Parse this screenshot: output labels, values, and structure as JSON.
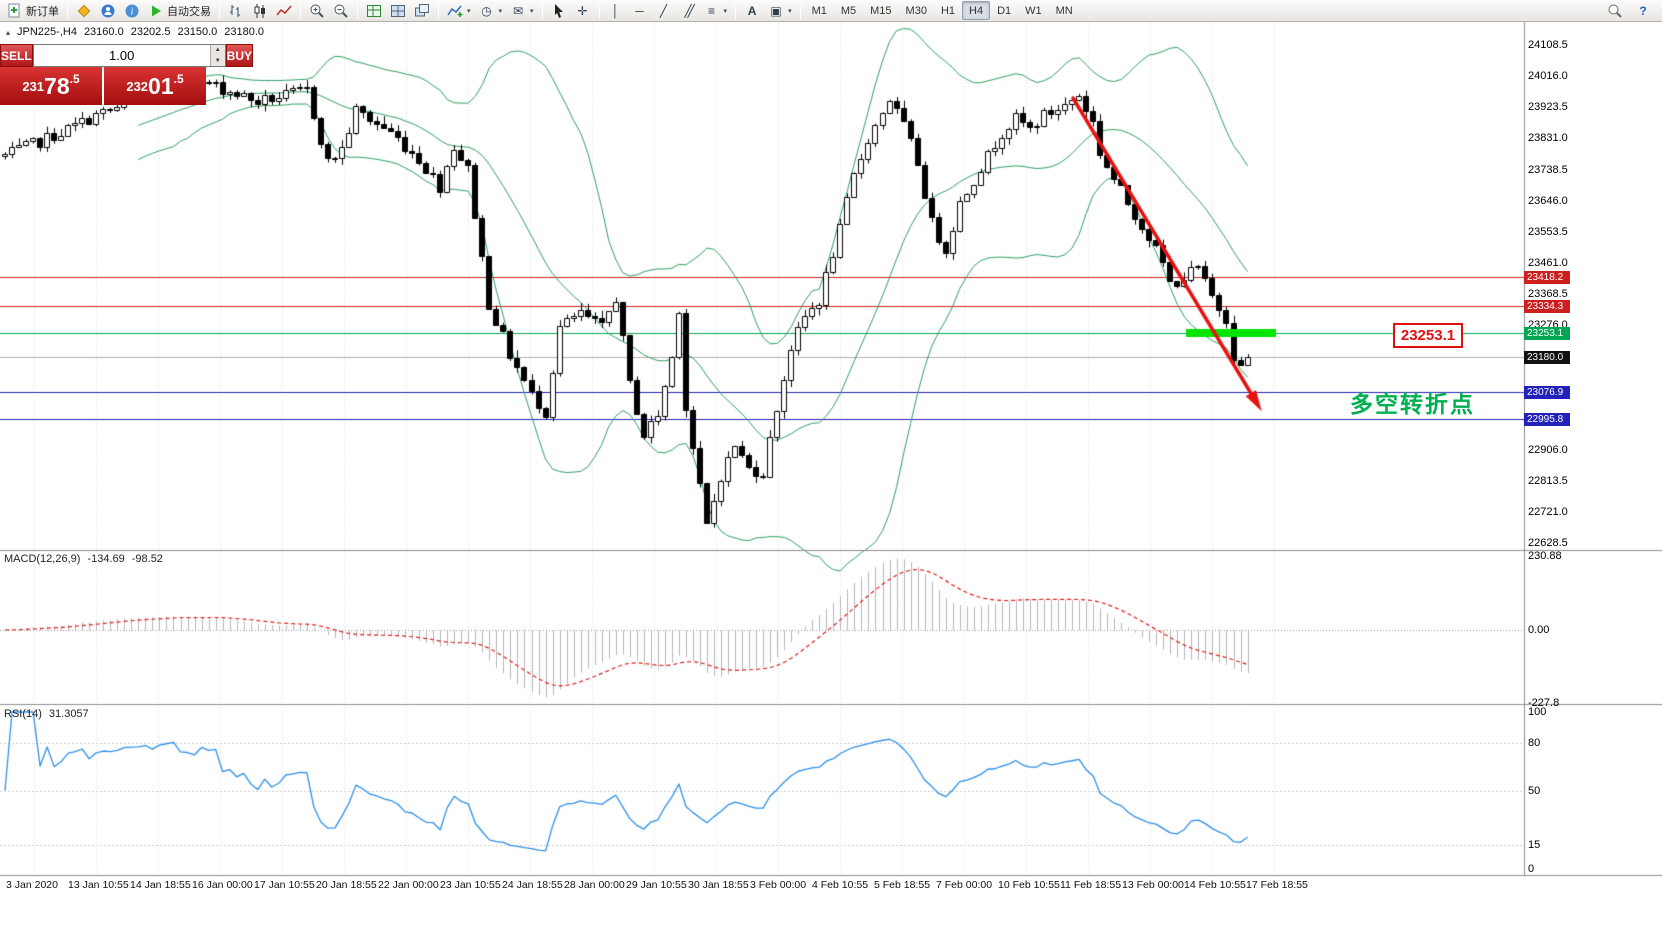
{
  "colors": {
    "up_candle": "#ffffff",
    "down_candle": "#000000",
    "candle_border": "#000000",
    "bollinger": "#2e9e63",
    "macd_hist": "#b6b6b6",
    "macd_signal": "#dd2222",
    "rsi_line": "#2f8fe8",
    "grid": "#dcdcdc",
    "highlight_green": "#00e400",
    "arrow_red": "#e81212"
  },
  "toolbar": {
    "new_order_label": "新订单",
    "autotrade_label": "自动交易",
    "timeframes": [
      "M1",
      "M5",
      "M15",
      "M30",
      "H1",
      "H4",
      "D1",
      "W1",
      "MN"
    ],
    "active_timeframe": "H4",
    "glyphs": {
      "vline": "│",
      "hline": "─",
      "trend": "╱",
      "channel": "╱╱",
      "fibo": "≡",
      "text": "A",
      "shapes": "▣",
      "clock": "◷",
      "template": "✉",
      "caret": "▾",
      "crosshair": "✛",
      "help": "?"
    }
  },
  "one_click": {
    "sell_label": "SELL",
    "buy_label": "BUY",
    "volume": "1.00",
    "sell_price": {
      "small": "231",
      "big": "78",
      "sup": ".5"
    },
    "buy_price": {
      "small": "232",
      "big": "01",
      "sup": ".5"
    }
  },
  "chart": {
    "symbol": "JPN225-,H4",
    "ohlc_text": {
      "open": "23160.0",
      "high": "23202.5",
      "low": "23150.0",
      "close": "23180.0"
    },
    "price_axis_labels": [
      "24108.5",
      "24016.0",
      "23923.5",
      "23831.0",
      "23738.5",
      "23646.0",
      "23553.5",
      "23461.0",
      "23368.5",
      "23276.0",
      "22906.0",
      "22813.5",
      "22721.0",
      "22628.5"
    ],
    "hlines": [
      {
        "price": 23418.2,
        "label": "23418.2",
        "color": "#cc2020",
        "tag_bg": "#cc2020"
      },
      {
        "price": 23334.3,
        "label": "23334.3",
        "color": "#cc2020",
        "tag_bg": "#cc2020"
      },
      {
        "price": 23253.1,
        "label": "23253.1",
        "color": "#00a651",
        "tag_bg": "#00a651"
      },
      {
        "price": 23180.0,
        "label": "23180.0",
        "color": "#b0b0b0",
        "tag_bg": "#111111"
      },
      {
        "price": 23076.9,
        "label": "23076.9",
        "color": "#2222bb",
        "tag_bg": "#2222bb"
      },
      {
        "price": 22995.8,
        "label": "22995.8",
        "color": "#2222bb",
        "tag_bg": "#2222bb"
      }
    ],
    "annotations": {
      "price_box": "23253.1",
      "note": "多空转折点"
    }
  },
  "macd": {
    "title": "MACD(12,26,9)",
    "value_main": "-134.69",
    "value_signal": "-98.52",
    "axis": [
      {
        "value": 230.88,
        "label": "230.88"
      },
      {
        "value": 0,
        "label": "0.00"
      },
      {
        "value": -227.8,
        "label": "-227.8"
      }
    ]
  },
  "rsi": {
    "title": "RSI(14)",
    "value": "31.3057",
    "axis": [
      {
        "value": 100,
        "label": "100"
      },
      {
        "value": 80,
        "label": "80"
      },
      {
        "value": 50,
        "label": "50"
      },
      {
        "value": 15,
        "label": "15"
      },
      {
        "value": 0,
        "label": "0"
      }
    ],
    "levels": [
      80,
      50,
      15
    ]
  },
  "time_axis": {
    "labels": [
      "3 Jan 2020",
      "13 Jan 10:55",
      "14 Jan 18:55",
      "16 Jan 00:00",
      "17 Jan 10:55",
      "20 Jan 18:55",
      "22 Jan 00:00",
      "23 Jan 10:55",
      "24 Jan 18:55",
      "28 Jan 00:00",
      "29 Jan 10:55",
      "30 Jan 18:55",
      "3 Feb 00:00",
      "4 Feb 10:55",
      "5 Feb 18:55",
      "7 Feb 00:00",
      "10 Feb 10:55",
      "11 Feb 18:55",
      "13 Feb 00:00",
      "14 Feb 10:55",
      "17 Feb 18:55"
    ]
  },
  "chart_data": {
    "type": "candlestick",
    "symbol": "JPN225-",
    "timeframe": "H4",
    "ohlc_current": {
      "open": 23160.0,
      "high": 23202.5,
      "low": 23150.0,
      "close": 23180.0
    },
    "visible_price_range": [
      22628.5,
      24108.5
    ],
    "price_gridline_step": 92.5,
    "candle_count": 178,
    "last_close": 23180.0,
    "price_anchors": [
      [
        0,
        23780
      ],
      [
        8,
        23850
      ],
      [
        13,
        23900
      ],
      [
        20,
        23950
      ],
      [
        29,
        23995
      ],
      [
        36,
        23940
      ],
      [
        43,
        23975
      ],
      [
        46,
        23760
      ],
      [
        48,
        23800
      ],
      [
        50,
        23915
      ],
      [
        55,
        23850
      ],
      [
        59,
        23770
      ],
      [
        62,
        23690
      ],
      [
        64,
        23810
      ],
      [
        66,
        23740
      ],
      [
        69,
        23340
      ],
      [
        72,
        23190
      ],
      [
        75,
        23070
      ],
      [
        77,
        23020
      ],
      [
        79,
        23270
      ],
      [
        82,
        23310
      ],
      [
        85,
        23270
      ],
      [
        87,
        23360
      ],
      [
        89,
        23100
      ],
      [
        91,
        22950
      ],
      [
        93,
        23010
      ],
      [
        95,
        23180
      ],
      [
        96,
        23330
      ],
      [
        97,
        23030
      ],
      [
        99,
        22790
      ],
      [
        100,
        22680
      ],
      [
        102,
        22830
      ],
      [
        104,
        22920
      ],
      [
        106,
        22850
      ],
      [
        108,
        22840
      ],
      [
        110,
        23030
      ],
      [
        112,
        23210
      ],
      [
        114,
        23300
      ],
      [
        116,
        23350
      ],
      [
        119,
        23560
      ],
      [
        121,
        23720
      ],
      [
        123,
        23830
      ],
      [
        126,
        23950
      ],
      [
        128,
        23870
      ],
      [
        130,
        23760
      ],
      [
        132,
        23580
      ],
      [
        134,
        23500
      ],
      [
        136,
        23640
      ],
      [
        138,
        23710
      ],
      [
        140,
        23780
      ],
      [
        142,
        23850
      ],
      [
        144,
        23890
      ],
      [
        146,
        23860
      ],
      [
        148,
        23900
      ],
      [
        151,
        23930
      ],
      [
        153,
        23960
      ],
      [
        155,
        23880
      ],
      [
        156,
        23790
      ],
      [
        158,
        23710
      ],
      [
        160,
        23640
      ],
      [
        163,
        23540
      ],
      [
        165,
        23460
      ],
      [
        166,
        23400
      ],
      [
        168,
        23420
      ],
      [
        170,
        23445
      ],
      [
        172,
        23360
      ],
      [
        174,
        23300
      ],
      [
        175,
        23190
      ],
      [
        176,
        23150
      ],
      [
        177,
        23180
      ]
    ],
    "indicators": [
      {
        "name": "Bollinger Bands",
        "period": 20,
        "deviation": 2
      },
      {
        "name": "MACD",
        "fast": 12,
        "slow": 26,
        "signal": 9,
        "current_main": -134.69,
        "current_signal": -98.52
      },
      {
        "name": "RSI",
        "period": 14,
        "current": 31.3057
      }
    ],
    "objects": [
      {
        "type": "trend_arrow",
        "color": "#e81212",
        "direction": "down"
      },
      {
        "type": "highlighted_segment",
        "color": "#00e400",
        "price": 23253.1
      },
      {
        "type": "price_label_box",
        "text": "23253.1"
      },
      {
        "type": "text_note",
        "text": "多空转折点",
        "color": "#00b050"
      }
    ]
  }
}
